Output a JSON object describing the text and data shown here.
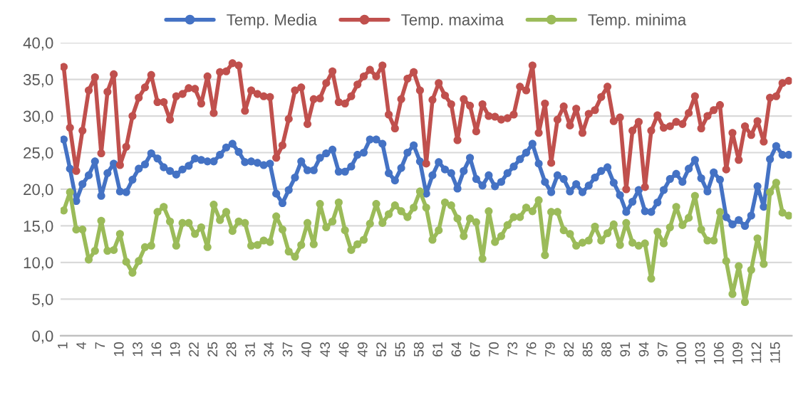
{
  "chart_data": {
    "type": "line",
    "categories": [
      "1",
      null,
      null,
      "4",
      null,
      null,
      "7",
      null,
      null,
      "10",
      null,
      null,
      "13",
      null,
      null,
      "16",
      null,
      null,
      "19",
      null,
      null,
      "22",
      null,
      null,
      "25",
      null,
      null,
      "28",
      null,
      null,
      "31",
      null,
      null,
      "34",
      null,
      null,
      "37",
      null,
      null,
      "40",
      null,
      null,
      "43",
      null,
      null,
      "46",
      null,
      null,
      "49",
      null,
      null,
      "52",
      null,
      null,
      "55",
      null,
      null,
      "58",
      null,
      null,
      "61",
      null,
      null,
      "64",
      null,
      null,
      "67",
      null,
      null,
      "70",
      null,
      null,
      "73",
      null,
      null,
      "76",
      null,
      null,
      "79",
      null,
      null,
      "82",
      null,
      null,
      "85",
      null,
      null,
      "88",
      null,
      null,
      "91",
      null,
      null,
      "94",
      null,
      null,
      "97",
      null,
      null,
      "100",
      null,
      null,
      "103",
      null,
      null,
      "106",
      null,
      null,
      "109",
      null,
      null,
      "112",
      null,
      null,
      "115",
      null,
      null
    ],
    "series": [
      {
        "name": "Temp. Media",
        "color": "#4472c4",
        "values": [
          26.8,
          22.8,
          18.4,
          20.7,
          21.9,
          23.8,
          19.1,
          22.2,
          23.5,
          19.7,
          19.6,
          21.3,
          22.8,
          23.4,
          24.9,
          24.2,
          23.0,
          22.5,
          22.0,
          22.7,
          23.2,
          24.2,
          24.0,
          23.8,
          23.8,
          24.7,
          25.7,
          26.2,
          25.1,
          23.7,
          23.8,
          23.6,
          23.3,
          23.5,
          19.4,
          18.1,
          19.9,
          21.6,
          23.8,
          22.6,
          22.6,
          24.3,
          24.9,
          25.4,
          22.4,
          22.4,
          23.1,
          24.7,
          25.0,
          26.8,
          26.8,
          26.2,
          22.2,
          21.2,
          22.9,
          25.0,
          26.0,
          23.8,
          19.4,
          21.9,
          23.7,
          22.7,
          22.2,
          20.1,
          22.5,
          24.3,
          21.4,
          20.5,
          21.9,
          20.4,
          21.0,
          22.2,
          23.1,
          24.1,
          25.0,
          26.2,
          23.5,
          21.0,
          19.6,
          21.9,
          21.4,
          19.7,
          20.7,
          19.6,
          20.5,
          21.6,
          22.5,
          23.0,
          20.9,
          19.2,
          16.9,
          18.3,
          19.9,
          17.0,
          16.9,
          18.2,
          19.9,
          21.4,
          22.1,
          21.0,
          22.8,
          24.0,
          21.5,
          19.7,
          22.3,
          21.3,
          16.2,
          15.2,
          15.8,
          15.0,
          16.4,
          20.4,
          17.6,
          24.1,
          25.9,
          24.7,
          24.7
        ]
      },
      {
        "name": "Temp. maxima",
        "color": "#c0504d",
        "values": [
          36.7,
          28.4,
          22.5,
          28.0,
          33.5,
          35.3,
          24.9,
          33.3,
          35.7,
          23.3,
          25.8,
          30.0,
          32.5,
          33.9,
          35.6,
          31.9,
          31.9,
          29.5,
          32.7,
          33.0,
          33.8,
          33.7,
          31.7,
          35.4,
          30.4,
          36.0,
          36.1,
          37.2,
          36.9,
          30.7,
          33.5,
          33.0,
          32.7,
          32.6,
          24.3,
          26.0,
          29.6,
          33.5,
          33.9,
          28.9,
          32.3,
          32.4,
          34.5,
          36.1,
          31.9,
          31.7,
          32.7,
          34.3,
          35.4,
          36.3,
          35.4,
          36.9,
          30.2,
          28.3,
          32.3,
          35.1,
          36.0,
          33.5,
          23.5,
          32.2,
          34.5,
          32.8,
          31.6,
          26.7,
          32.3,
          31.4,
          27.9,
          31.6,
          30.0,
          29.9,
          29.5,
          29.7,
          30.2,
          34.0,
          33.5,
          36.9,
          27.7,
          31.7,
          23.6,
          29.5,
          31.3,
          28.7,
          31.0,
          27.7,
          30.3,
          30.8,
          32.6,
          34.0,
          29.3,
          29.8,
          20.0,
          28.0,
          29.2,
          20.3,
          28.0,
          30.1,
          28.4,
          28.6,
          29.2,
          28.9,
          30.4,
          32.7,
          28.3,
          30.0,
          30.8,
          31.5,
          22.7,
          27.7,
          24.0,
          28.6,
          27.4,
          29.3,
          26.5,
          32.5,
          32.7,
          34.5,
          34.8
        ]
      },
      {
        "name": "Temp. minima",
        "color": "#9bbb59",
        "values": [
          17.1,
          19.6,
          14.5,
          14.5,
          10.4,
          11.6,
          15.7,
          11.6,
          11.7,
          13.9,
          10.1,
          8.6,
          10.2,
          12.1,
          12.3,
          16.9,
          17.6,
          15.6,
          12.3,
          15.4,
          15.4,
          13.9,
          14.8,
          12.1,
          17.9,
          15.8,
          16.9,
          14.3,
          15.6,
          15.4,
          12.3,
          12.4,
          13.0,
          12.8,
          16.3,
          14.5,
          11.5,
          10.8,
          12.4,
          15.4,
          12.5,
          18.0,
          14.8,
          15.6,
          18.2,
          14.4,
          11.7,
          12.5,
          13.1,
          15.3,
          18.0,
          15.4,
          16.6,
          17.8,
          17.0,
          16.2,
          17.5,
          19.7,
          17.5,
          13.1,
          14.4,
          18.2,
          17.8,
          16.0,
          13.6,
          16.0,
          15.5,
          10.5,
          17.0,
          12.8,
          13.6,
          15.1,
          16.2,
          16.2,
          17.5,
          17.0,
          18.5,
          11.0,
          16.9,
          16.9,
          14.4,
          13.9,
          12.3,
          12.7,
          13.0,
          14.9,
          13.0,
          14.0,
          15.2,
          12.4,
          15.4,
          12.7,
          12.3,
          12.6,
          7.8,
          14.2,
          12.6,
          14.8,
          17.6,
          15.1,
          16.1,
          19.1,
          14.5,
          13.0,
          13.0,
          16.9,
          10.2,
          5.7,
          9.5,
          4.6,
          9.0,
          13.3,
          9.8,
          19.6,
          20.9,
          16.8,
          16.4
        ]
      }
    ],
    "ylim": [
      0,
      40
    ],
    "yticks": [
      {
        "value": 0,
        "label": "0,0"
      },
      {
        "value": 5,
        "label": "5,0"
      },
      {
        "value": 10,
        "label": "10,0"
      },
      {
        "value": 15,
        "label": "15,0"
      },
      {
        "value": 20,
        "label": "20,0"
      },
      {
        "value": 25,
        "label": "25,0"
      },
      {
        "value": 30,
        "label": "30,0"
      },
      {
        "value": 35,
        "label": "35,0"
      },
      {
        "value": 40,
        "label": "40,0"
      }
    ],
    "grid": "y",
    "legend": "top",
    "marker": "circle",
    "line_style": "solid"
  }
}
